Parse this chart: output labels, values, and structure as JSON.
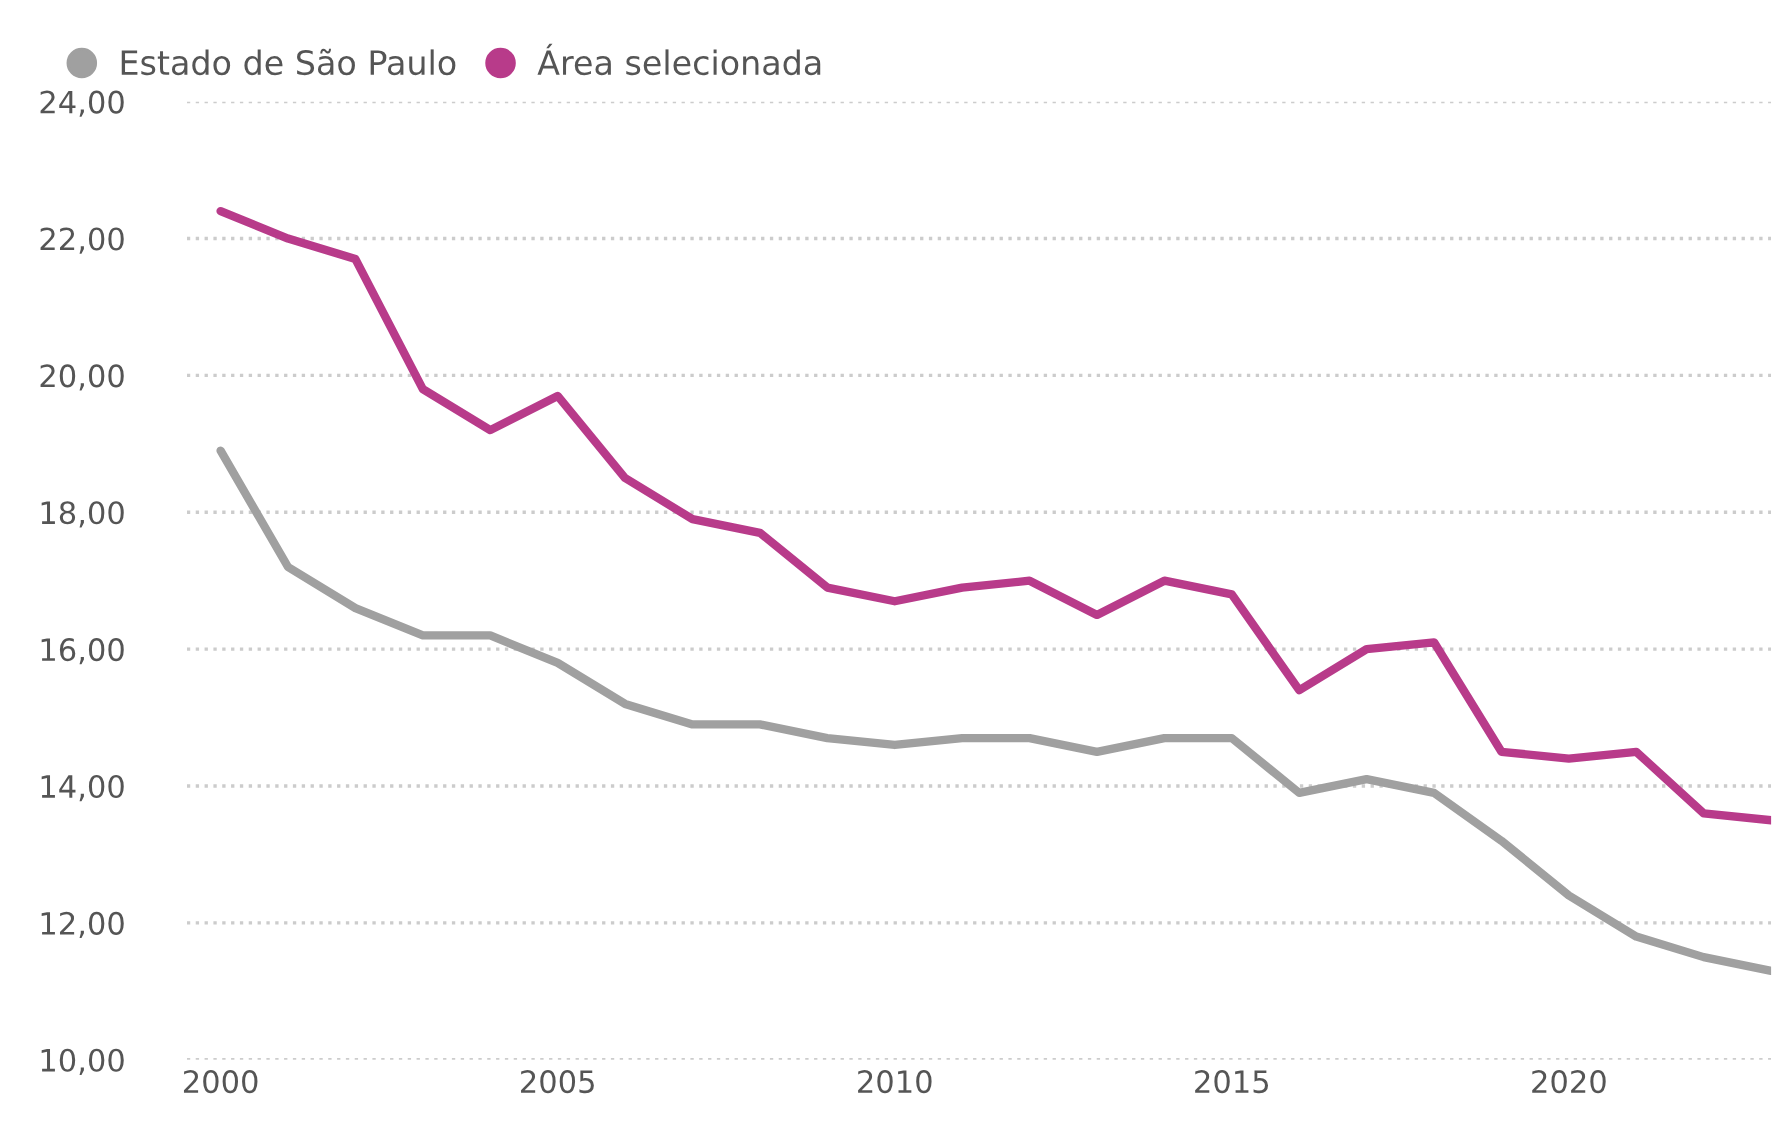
{
  "chart_data": {
    "type": "line",
    "x": [
      2000,
      2001,
      2002,
      2003,
      2004,
      2005,
      2006,
      2007,
      2008,
      2009,
      2010,
      2011,
      2012,
      2013,
      2014,
      2015,
      2016,
      2017,
      2018,
      2019,
      2020,
      2021,
      2022,
      2023
    ],
    "series": [
      {
        "name": "Estado de São Paulo",
        "color": "#a0a0a0",
        "values": [
          18.9,
          17.2,
          16.6,
          16.2,
          16.2,
          15.8,
          15.2,
          14.9,
          14.9,
          14.7,
          14.6,
          14.7,
          14.7,
          14.5,
          14.7,
          14.7,
          13.9,
          14.1,
          13.9,
          13.2,
          12.4,
          11.8,
          11.5,
          11.3
        ]
      },
      {
        "name": "Área selecionada",
        "color": "#b83b8a",
        "values": [
          22.4,
          22.0,
          21.7,
          19.8,
          19.2,
          19.7,
          18.5,
          17.9,
          17.7,
          16.9,
          16.7,
          16.9,
          17.0,
          16.5,
          17.0,
          16.8,
          15.4,
          16.0,
          16.1,
          14.5,
          14.4,
          14.5,
          13.6,
          13.5
        ]
      }
    ],
    "xlim": [
      1999.5,
      2023
    ],
    "xticks": [
      2000,
      2005,
      2010,
      2015,
      2020
    ],
    "ylim": [
      10,
      24
    ],
    "yticks": [
      {
        "value": 10,
        "label": "10,00"
      },
      {
        "value": 12,
        "label": "12,00"
      },
      {
        "value": 14,
        "label": "14,00"
      },
      {
        "value": 16,
        "label": "16,00"
      },
      {
        "value": 18,
        "label": "18,00"
      },
      {
        "value": 20,
        "label": "20,00"
      },
      {
        "value": 22,
        "label": "22,00"
      },
      {
        "value": 24,
        "label": "24,00"
      }
    ],
    "grid": "y",
    "legend": "top left",
    "marker": "none",
    "line_style": "solid"
  }
}
